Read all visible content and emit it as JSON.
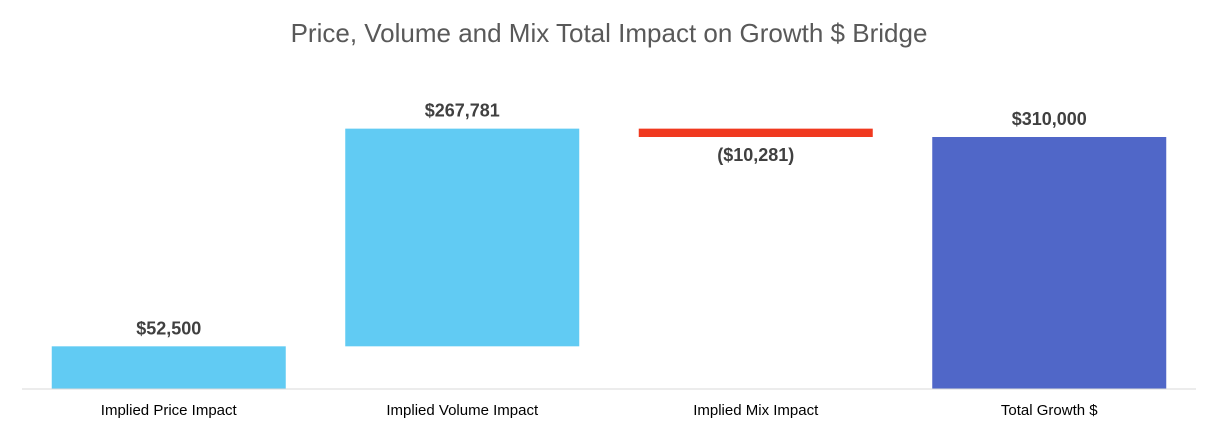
{
  "chart_data": {
    "type": "bar",
    "subtype": "waterfall",
    "title": "Price, Volume and Mix Total Impact on Growth $ Bridge",
    "categories": [
      "Implied Price Impact",
      "Implied Volume Impact",
      "Implied Mix Impact",
      "Total Growth $"
    ],
    "values": [
      52500,
      267781,
      -10281,
      310000
    ],
    "value_labels": [
      "$52,500",
      "$267,781",
      "($10,281)",
      "$310,000"
    ],
    "kinds": [
      "increase",
      "increase",
      "decrease",
      "total"
    ],
    "xlabel": "",
    "ylabel": "",
    "ylim": [
      0,
      325000
    ],
    "grid": false,
    "legend": "none",
    "colors": {
      "increase": "#61CBF3",
      "decrease": "#F0391F",
      "total": "#5067C8",
      "axis": "#D9D9D9"
    }
  }
}
